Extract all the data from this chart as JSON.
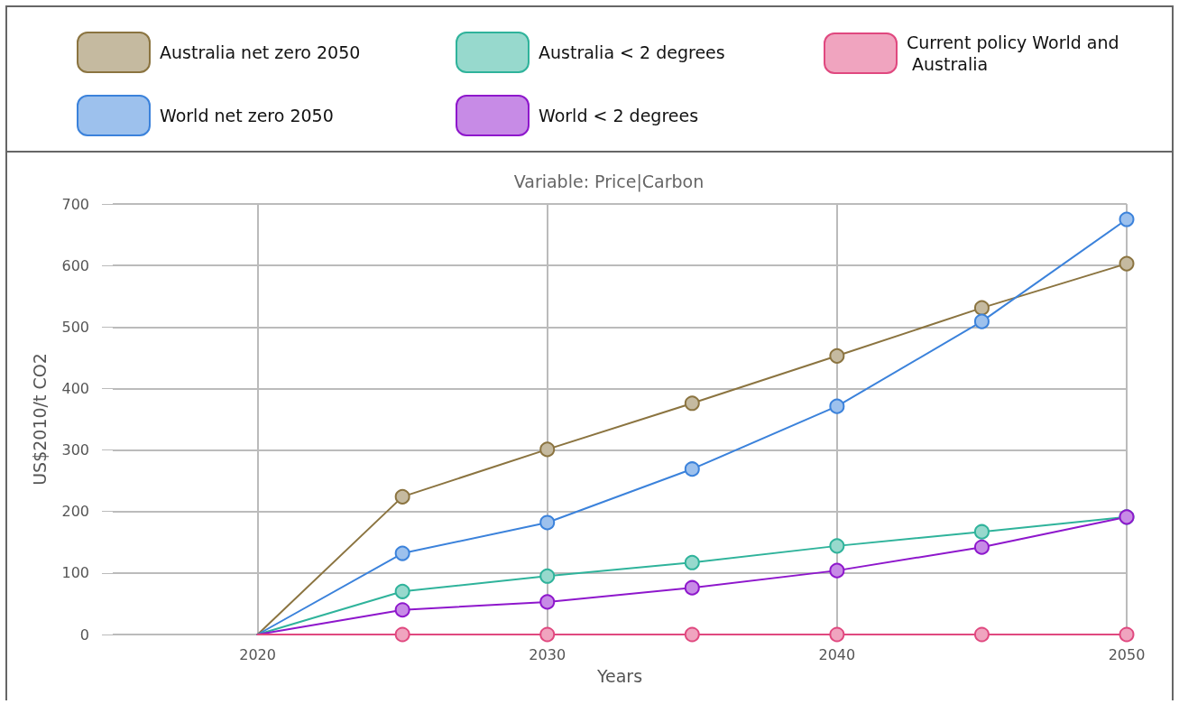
{
  "chart_data": {
    "type": "line",
    "title": "Variable: Price|Carbon",
    "xlabel": "Years",
    "ylabel": "US$2010/t CO2",
    "x": [
      2020,
      2025,
      2030,
      2035,
      2040,
      2045,
      2050
    ],
    "xlim": [
      2015,
      2050
    ],
    "xticks": [
      2020,
      2030,
      2040,
      2050
    ],
    "ylim": [
      0,
      700
    ],
    "yticks": [
      0,
      100,
      200,
      300,
      400,
      500,
      600,
      700
    ],
    "grid": true,
    "legend": "top",
    "marker": "circle",
    "line_style": "solid",
    "series": [
      {
        "name": "Australia net zero 2050",
        "color": "#8b7440",
        "values": [
          0,
          224,
          301,
          376,
          453,
          531,
          603
        ]
      },
      {
        "name": "World net zero 2050",
        "color": "#3b82db",
        "values": [
          0,
          132,
          182,
          269,
          371,
          509,
          675
        ]
      },
      {
        "name": "Australia < 2 degrees",
        "color": "#2fb39b",
        "values": [
          0,
          70,
          95,
          117,
          144,
          167,
          191
        ]
      },
      {
        "name": "World < 2 degrees",
        "color": "#8e17cc",
        "values": [
          0,
          40,
          53,
          76,
          104,
          142,
          191
        ]
      },
      {
        "name": "Current policy World and Australia",
        "color": "#e0487f",
        "values": [
          0,
          0,
          0,
          0,
          0,
          0,
          0
        ]
      }
    ]
  }
}
